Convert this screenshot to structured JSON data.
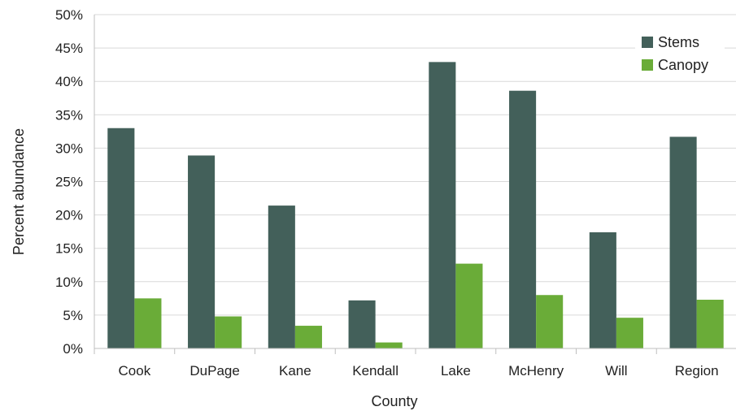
{
  "chart_data": {
    "type": "bar",
    "title": "",
    "xlabel": "County",
    "ylabel": "Percent abundance",
    "categories": [
      "Cook",
      "DuPage",
      "Kane",
      "Kendall",
      "Lake",
      "McHenry",
      "Will",
      "Region"
    ],
    "series": [
      {
        "name": "Stems",
        "color": "#43605a",
        "values": [
          33.0,
          28.9,
          21.4,
          7.2,
          42.9,
          38.6,
          17.4,
          31.7
        ]
      },
      {
        "name": "Canopy",
        "color": "#6aac38",
        "values": [
          7.5,
          4.8,
          3.4,
          0.9,
          12.7,
          8.0,
          4.6,
          7.3
        ]
      }
    ],
    "ylim": [
      0,
      50
    ],
    "yticks": [
      "0%",
      "5%",
      "10%",
      "15%",
      "20%",
      "25%",
      "30%",
      "35%",
      "40%",
      "45%",
      "50%"
    ],
    "grid": true,
    "legend_position": "top-right"
  }
}
